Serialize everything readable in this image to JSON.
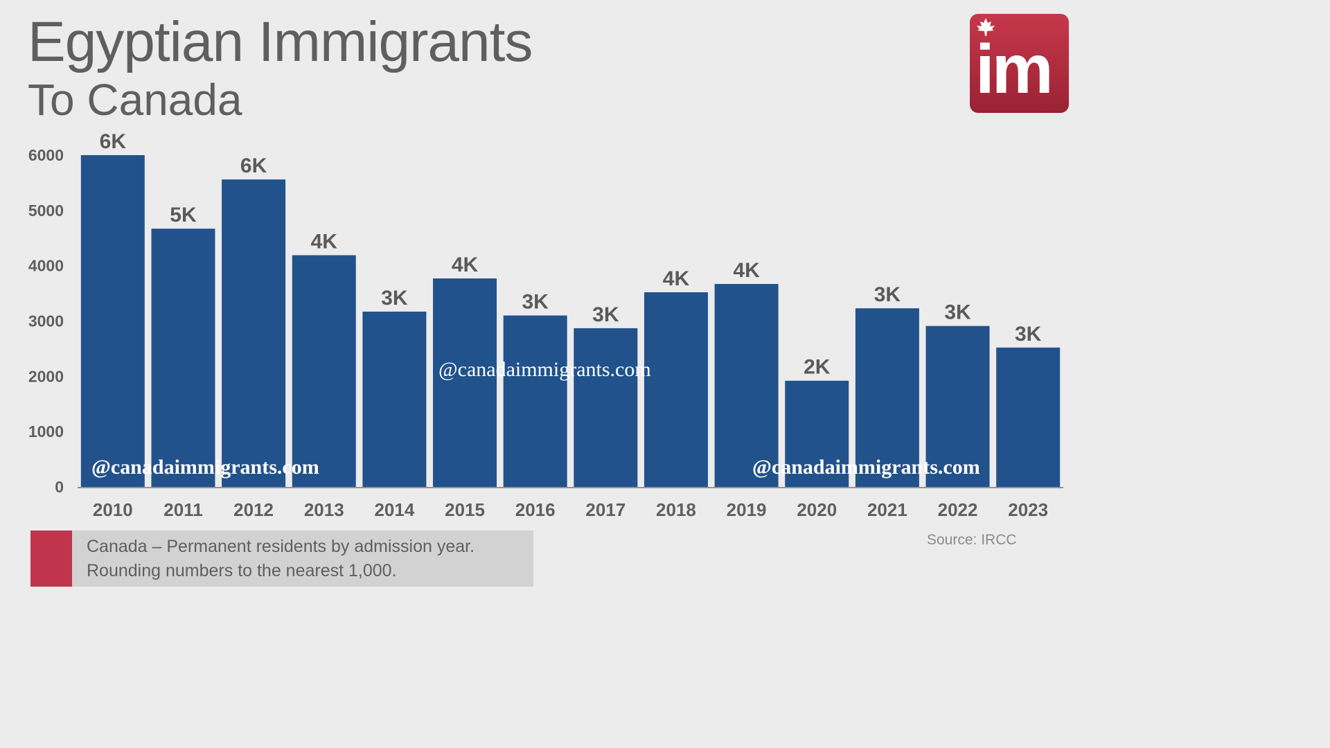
{
  "header": {
    "title": "Egyptian Immigrants",
    "subtitle": "To Canada",
    "logo_text": "im"
  },
  "footer": {
    "note_line1": "Canada – Permanent residents by admission year.",
    "note_line2": "Rounding numbers to the nearest 1,000.",
    "source": "Source: IRCC",
    "accent": "#c0354b"
  },
  "watermarks": [
    "@canadaimmigrants.com",
    "@canadaimmigrants.com",
    "@canadaimmigrants.com"
  ],
  "chart_data": {
    "type": "bar",
    "title": "",
    "xlabel": "",
    "ylabel": "",
    "ylim": [
      0,
      6000
    ],
    "yticks": [
      0,
      1000,
      2000,
      3000,
      4000,
      5000,
      6000
    ],
    "grid": false,
    "bar_color": "#21528c",
    "categories": [
      "2010",
      "2011",
      "2012",
      "2013",
      "2014",
      "2015",
      "2016",
      "2017",
      "2018",
      "2019",
      "2020",
      "2021",
      "2022",
      "2023"
    ],
    "values": [
      6000,
      4670,
      5560,
      4190,
      3170,
      3770,
      3100,
      2870,
      3520,
      3670,
      1920,
      3230,
      2910,
      2520
    ],
    "data_labels": [
      "6K",
      "5K",
      "6K",
      "4K",
      "3K",
      "4K",
      "3K",
      "3K",
      "4K",
      "4K",
      "2K",
      "3K",
      "3K",
      "3K"
    ]
  }
}
